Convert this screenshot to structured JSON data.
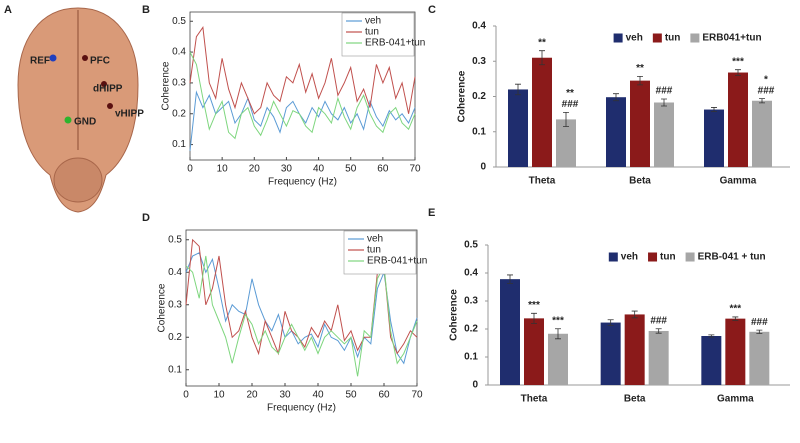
{
  "figure_a": {
    "panel": "A",
    "labels": [
      "REF",
      "PFC",
      "dHIPP",
      "vHIPP",
      "GND"
    ]
  },
  "chart_data": [
    {
      "type": "line",
      "panel": "B",
      "xlabel": "Frequency (Hz)",
      "ylabel": "Coherence",
      "x": [
        0,
        2,
        4,
        6,
        8,
        10,
        12,
        14,
        16,
        18,
        20,
        22,
        24,
        26,
        28,
        30,
        32,
        34,
        36,
        38,
        40,
        42,
        44,
        46,
        48,
        50,
        52,
        54,
        56,
        58,
        60,
        62,
        64,
        66,
        68,
        70
      ],
      "xlim": [
        0,
        70
      ],
      "xticks": [
        0,
        10,
        20,
        30,
        40,
        50,
        60,
        70
      ],
      "ylim": [
        0.05,
        0.53
      ],
      "yticks": [
        0.1,
        0.2,
        0.3,
        0.4,
        0.5
      ],
      "legend": "upper right",
      "series": [
        {
          "name": "veh",
          "color": "#5b9bd5",
          "values": [
            0.08,
            0.27,
            0.22,
            0.26,
            0.2,
            0.22,
            0.24,
            0.17,
            0.2,
            0.25,
            0.18,
            0.16,
            0.22,
            0.19,
            0.14,
            0.22,
            0.24,
            0.2,
            0.17,
            0.22,
            0.19,
            0.24,
            0.2,
            0.18,
            0.22,
            0.17,
            0.2,
            0.15,
            0.24,
            0.19,
            0.16,
            0.21,
            0.18,
            0.2,
            0.17,
            0.22
          ]
        },
        {
          "name": "tun",
          "color": "#c0504d",
          "values": [
            0.3,
            0.45,
            0.48,
            0.3,
            0.25,
            0.38,
            0.28,
            0.22,
            0.3,
            0.25,
            0.2,
            0.22,
            0.3,
            0.26,
            0.24,
            0.32,
            0.3,
            0.36,
            0.27,
            0.33,
            0.25,
            0.3,
            0.38,
            0.26,
            0.3,
            0.35,
            0.24,
            0.28,
            0.22,
            0.36,
            0.3,
            0.35,
            0.25,
            0.3,
            0.2,
            0.32
          ]
        },
        {
          "name": "ERB-041+tun",
          "color": "#7ed67e",
          "values": [
            0.4,
            0.36,
            0.25,
            0.15,
            0.2,
            0.24,
            0.14,
            0.12,
            0.2,
            0.22,
            0.16,
            0.13,
            0.18,
            0.24,
            0.2,
            0.16,
            0.21,
            0.2,
            0.16,
            0.14,
            0.22,
            0.2,
            0.17,
            0.25,
            0.19,
            0.15,
            0.22,
            0.26,
            0.2,
            0.16,
            0.14,
            0.2,
            0.22,
            0.17,
            0.15,
            0.2
          ]
        }
      ]
    },
    {
      "type": "bar",
      "panel": "C",
      "ylabel": "Coherence",
      "categories": [
        "Theta",
        "Beta",
        "Gamma"
      ],
      "ylim": [
        0,
        0.4
      ],
      "yticks": [
        0,
        0.1,
        0.2,
        0.3,
        0.4
      ],
      "series": [
        {
          "name": "veh",
          "color": "#1f2d6e",
          "values": [
            0.22,
            0.198,
            0.163
          ],
          "errors": [
            0.015,
            0.01,
            0.006
          ],
          "significance": [
            [],
            [],
            []
          ]
        },
        {
          "name": "tun",
          "color": "#8b1a1a",
          "values": [
            0.31,
            0.245,
            0.268
          ],
          "errors": [
            0.02,
            0.012,
            0.008
          ],
          "significance": [
            [
              "**"
            ],
            [
              "**"
            ],
            [
              "***"
            ]
          ]
        },
        {
          "name": "ERB041+tun",
          "color": "#a6a6a6",
          "values": [
            0.135,
            0.183,
            0.188
          ],
          "errors": [
            0.02,
            0.01,
            0.006
          ],
          "significance": [
            [
              "**",
              "###"
            ],
            [
              "###"
            ],
            [
              "*",
              "###"
            ]
          ]
        }
      ]
    },
    {
      "type": "line",
      "panel": "D",
      "xlabel": "Frequency (Hz)",
      "ylabel": "Coherence",
      "x": [
        0,
        2,
        4,
        6,
        8,
        10,
        12,
        14,
        16,
        18,
        20,
        22,
        24,
        26,
        28,
        30,
        32,
        34,
        36,
        38,
        40,
        42,
        44,
        46,
        48,
        50,
        52,
        54,
        56,
        58,
        60,
        62,
        64,
        66,
        68,
        70
      ],
      "xlim": [
        0,
        70
      ],
      "xticks": [
        0,
        10,
        20,
        30,
        40,
        50,
        60,
        70
      ],
      "ylim": [
        0.05,
        0.53
      ],
      "yticks": [
        0.1,
        0.2,
        0.3,
        0.4,
        0.5
      ],
      "legend": "upper right",
      "series": [
        {
          "name": "veh",
          "color": "#5b9bd5",
          "values": [
            0.4,
            0.45,
            0.46,
            0.4,
            0.44,
            0.35,
            0.25,
            0.3,
            0.28,
            0.27,
            0.38,
            0.3,
            0.25,
            0.22,
            0.27,
            0.2,
            0.22,
            0.18,
            0.2,
            0.21,
            0.17,
            0.24,
            0.2,
            0.19,
            0.16,
            0.2,
            0.14,
            0.2,
            0.18,
            0.35,
            0.4,
            0.25,
            0.15,
            0.12,
            0.2,
            0.26
          ]
        },
        {
          "name": "tun",
          "color": "#c0504d",
          "values": [
            0.3,
            0.5,
            0.48,
            0.3,
            0.35,
            0.45,
            0.3,
            0.2,
            0.22,
            0.28,
            0.2,
            0.15,
            0.25,
            0.2,
            0.15,
            0.28,
            0.22,
            0.2,
            0.17,
            0.23,
            0.2,
            0.25,
            0.22,
            0.3,
            0.19,
            0.22,
            0.16,
            0.2,
            0.2,
            0.4,
            0.42,
            0.2,
            0.15,
            0.18,
            0.22,
            0.2
          ]
        },
        {
          "name": "ERB-041+tun",
          "color": "#7ed67e",
          "values": [
            0.42,
            0.4,
            0.32,
            0.45,
            0.3,
            0.25,
            0.2,
            0.12,
            0.2,
            0.27,
            0.24,
            0.18,
            0.22,
            0.17,
            0.15,
            0.2,
            0.24,
            0.2,
            0.16,
            0.2,
            0.15,
            0.2,
            0.22,
            0.2,
            0.18,
            0.2,
            0.08,
            0.22,
            0.2,
            0.38,
            0.42,
            0.22,
            0.12,
            0.15,
            0.2,
            0.25
          ]
        }
      ]
    },
    {
      "type": "bar",
      "panel": "E",
      "ylabel": "Coherence",
      "categories": [
        "Theta",
        "Beta",
        "Gamma"
      ],
      "ylim": [
        0,
        0.5
      ],
      "yticks": [
        0,
        0.1,
        0.2,
        0.3,
        0.4,
        0.5
      ],
      "series": [
        {
          "name": "veh",
          "color": "#1f2d6e",
          "values": [
            0.378,
            0.223,
            0.175
          ],
          "errors": [
            0.015,
            0.01,
            0.004
          ],
          "significance": [
            [],
            [],
            []
          ]
        },
        {
          "name": "tun",
          "color": "#8b1a1a",
          "values": [
            0.238,
            0.252,
            0.237
          ],
          "errors": [
            0.018,
            0.012,
            0.006
          ],
          "significance": [
            [
              "***"
            ],
            [],
            [
              "***"
            ]
          ]
        },
        {
          "name": "ERB-041 + tun",
          "color": "#a6a6a6",
          "values": [
            0.183,
            0.193,
            0.19
          ],
          "errors": [
            0.018,
            0.008,
            0.006
          ],
          "significance": [
            [
              "***"
            ],
            [
              "###"
            ],
            [
              "###"
            ]
          ]
        }
      ]
    }
  ]
}
